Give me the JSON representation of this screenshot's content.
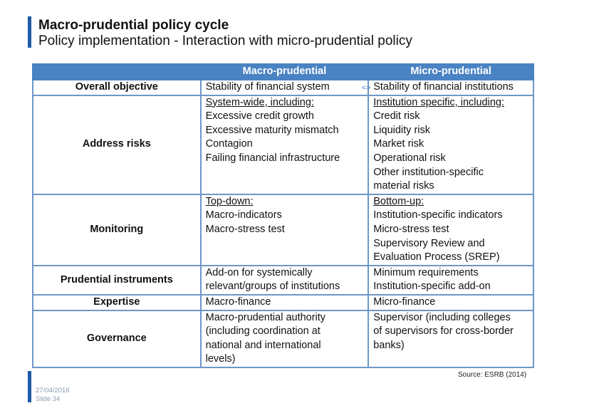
{
  "header": {
    "title": "Macro-prudential policy cycle",
    "subtitle": "Policy implementation - Interaction with micro-prudential policy"
  },
  "table": {
    "columns": [
      "Macro-prudential",
      "Micro-prudential"
    ],
    "rows": [
      {
        "label": "Overall objective",
        "macro": [
          "Stability of financial system"
        ],
        "micro": [
          "Stability of financial institutions"
        ]
      },
      {
        "label": "Address risks",
        "macro_heading": "System-wide, including:",
        "macro": [
          "Excessive credit growth",
          "Excessive maturity mismatch",
          "Contagion",
          "Failing financial infrastructure"
        ],
        "micro_heading": "Institution specific, including:",
        "micro": [
          "Credit risk",
          "Liquidity risk",
          "Market risk",
          "Operational risk",
          "Other institution-specific",
          "material risks"
        ]
      },
      {
        "label": "Monitoring",
        "macro_heading": "Top-down:",
        "macro": [
          "Macro-indicators",
          "Macro-stress test"
        ],
        "micro_heading": "Bottom-up:",
        "micro": [
          "Institution-specific indicators",
          "Micro-stress test",
          "Supervisory Review and",
          "Evaluation Process (SREP)"
        ]
      },
      {
        "label": "Prudential instruments",
        "macro": [
          "Add-on for systemically",
          "relevant/groups of institutions"
        ],
        "micro": [
          "Minimum requirements",
          "Institution-specific add-on"
        ]
      },
      {
        "label": "Expertise",
        "macro": [
          "Macro-finance"
        ],
        "micro": [
          "Micro-finance"
        ]
      },
      {
        "label": "Governance",
        "macro": [
          "Macro-prudential authority",
          "(including coordination at",
          "national and international",
          "levels)"
        ],
        "micro": [
          "Supervisor (including colleges",
          "of supervisors for cross-border",
          "banks)"
        ]
      }
    ]
  },
  "source": "Source: ESRB (2014)",
  "footer": {
    "date": "27/04/2016",
    "slide": "Slide 34"
  },
  "colors": {
    "accent": "#1f5aa6",
    "header_fill": "#4a83c3",
    "border": "#6e97c7"
  },
  "icons": {
    "objective_arrow": "double-arrow-icon"
  }
}
